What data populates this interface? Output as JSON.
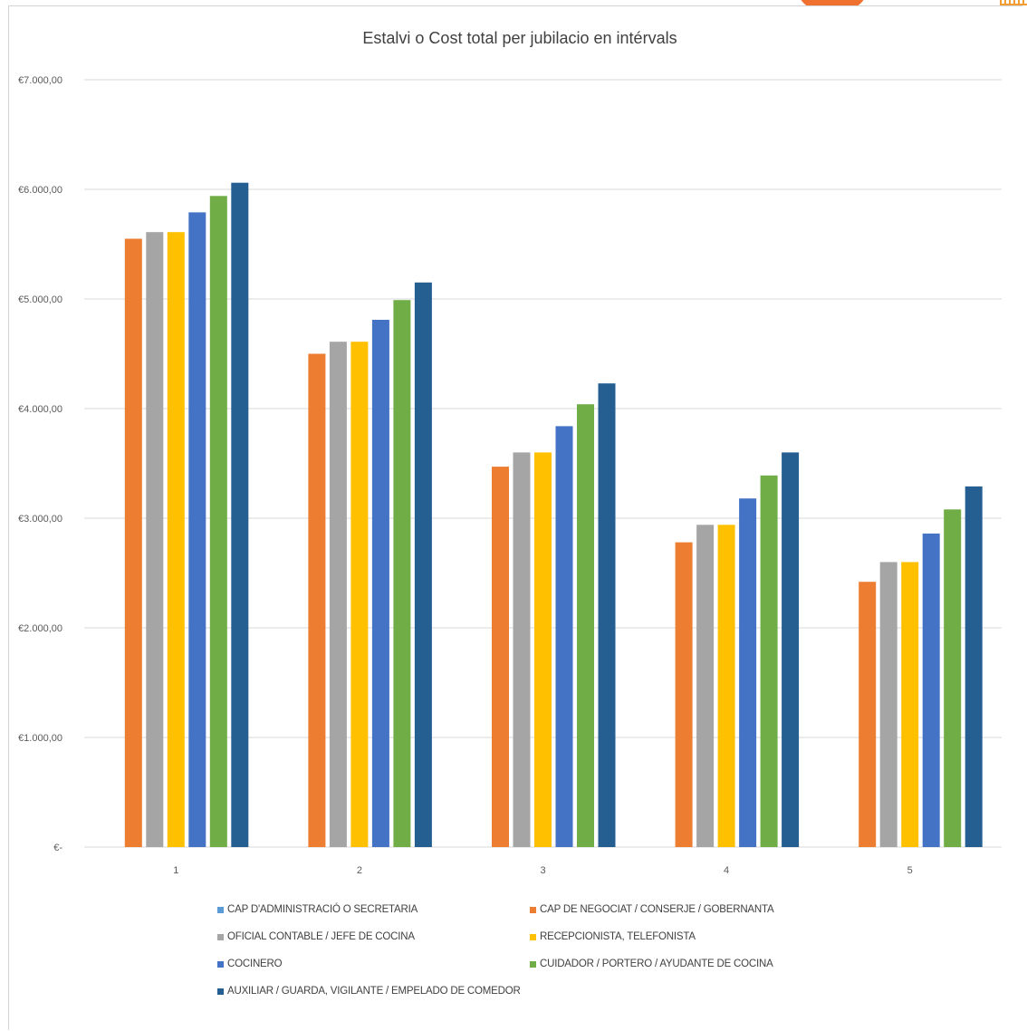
{
  "chart_data": {
    "type": "bar",
    "title": "Estalvi o Cost total per jubilacio  en intérvals",
    "xlabel": "",
    "ylabel": "",
    "categories": [
      "1",
      "2",
      "3",
      "4",
      "5"
    ],
    "ylim": [
      0,
      7000
    ],
    "y_ticks": [
      {
        "value": 0,
        "label": "€-"
      },
      {
        "value": 1000,
        "label": "€1.000,00"
      },
      {
        "value": 2000,
        "label": "€2.000,00"
      },
      {
        "value": 3000,
        "label": "€3.000,00"
      },
      {
        "value": 4000,
        "label": "€4.000,00"
      },
      {
        "value": 5000,
        "label": "€5.000,00"
      },
      {
        "value": 6000,
        "label": "€6.000,00"
      },
      {
        "value": 7000,
        "label": "€7.000,00"
      }
    ],
    "grid": true,
    "legend_position": "bottom",
    "series": [
      {
        "name": "CAP D'ADMINISTRACIÓ O SECRETARIA",
        "color": "#5b9bd5",
        "values": [
          0,
          0,
          0,
          0,
          0
        ]
      },
      {
        "name": "CAP DE NEGOCIAT / CONSERJE / GOBERNANTA",
        "color": "#ed7d31",
        "values": [
          5550,
          4500,
          3470,
          2780,
          2420
        ]
      },
      {
        "name": "OFICIAL CONTABLE / JEFE DE COCINA",
        "color": "#a5a5a5",
        "values": [
          5610,
          4610,
          3600,
          2940,
          2600
        ]
      },
      {
        "name": "RECEPCIONISTA, TELEFONISTA",
        "color": "#ffc000",
        "values": [
          5610,
          4610,
          3600,
          2940,
          2600
        ]
      },
      {
        "name": "COCINERO",
        "color": "#4472c4",
        "values": [
          5790,
          4810,
          3840,
          3180,
          2860
        ]
      },
      {
        "name": "CUIDADOR / PORTERO / AYUDANTE DE COCINA",
        "color": "#70ad47",
        "values": [
          5940,
          4990,
          4040,
          3390,
          3080
        ]
      },
      {
        "name": "AUXILIAR / GUARDA, VIGILANTE / EMPELADO DE COMEDOR",
        "color": "#255e91",
        "values": [
          6060,
          5150,
          4230,
          3600,
          3290
        ]
      }
    ]
  }
}
